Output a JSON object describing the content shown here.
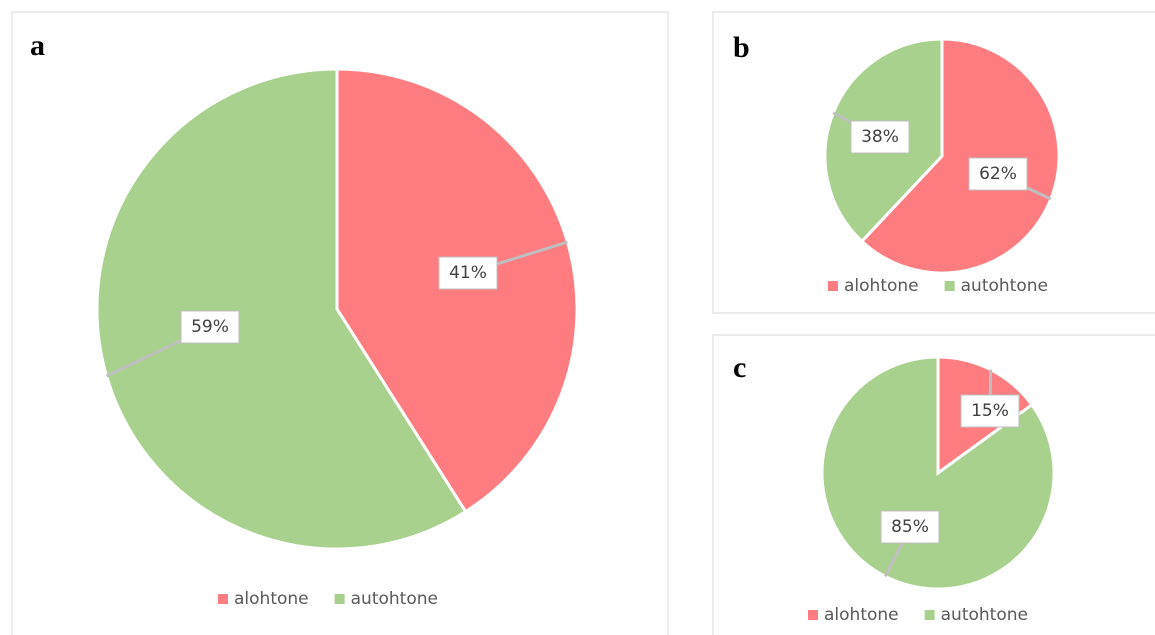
{
  "chart_data": [
    {
      "type": "pie",
      "title": "a",
      "categories": [
        "alohtone",
        "autohtone"
      ],
      "values": [
        41,
        59
      ],
      "value_labels": [
        "41%",
        "59%"
      ],
      "colors": [
        "#ff7c80",
        "#a9d18e"
      ],
      "legend": "bottom"
    },
    {
      "type": "pie",
      "title": "b",
      "categories": [
        "alohtone",
        "autohtone"
      ],
      "values": [
        62,
        38
      ],
      "value_labels": [
        "62%",
        "38%"
      ],
      "colors": [
        "#ff7c80",
        "#a9d18e"
      ],
      "legend": "bottom"
    },
    {
      "type": "pie",
      "title": "c",
      "categories": [
        "alohtone",
        "autohtone"
      ],
      "values": [
        15,
        85
      ],
      "value_labels": [
        "15%",
        "85%"
      ],
      "colors": [
        "#ff7c80",
        "#a9d18e"
      ],
      "legend": "bottom"
    }
  ]
}
